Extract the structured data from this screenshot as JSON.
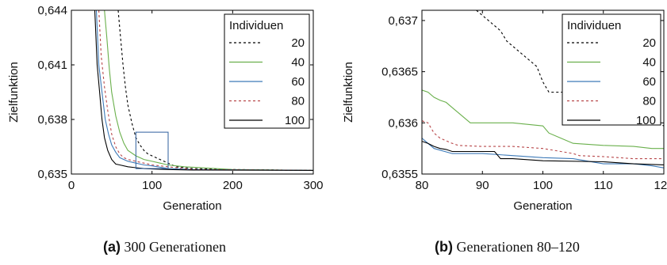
{
  "chart_data": [
    {
      "type": "line",
      "caption_label": "(a)",
      "caption_text": "300 Generationen",
      "xlabel": "Generation",
      "ylabel": "Zielfunktion",
      "xlim": [
        0,
        300
      ],
      "ylim": [
        0.635,
        0.644
      ],
      "xticks": [
        0,
        100,
        200,
        300
      ],
      "xtick_labels": [
        "0",
        "100",
        "200",
        "300"
      ],
      "yticks": [
        0.635,
        0.638,
        0.641,
        0.644
      ],
      "ytick_labels": [
        "0,635",
        "0,638",
        "0,641",
        "0,644"
      ],
      "grid": false,
      "legend_title": "Individuen",
      "legend_position": "top-right",
      "zoom_box": {
        "x": [
          80,
          120
        ],
        "y": [
          0.6353,
          0.6373
        ]
      },
      "series": [
        {
          "name": "20",
          "color": "#000000",
          "dash": "3,3",
          "x": [
            58,
            61,
            64,
            67,
            70,
            75,
            80,
            85,
            90,
            95,
            100,
            110,
            120,
            130,
            150,
            200,
            300
          ],
          "y": [
            0.644,
            0.6425,
            0.641,
            0.6398,
            0.6388,
            0.6378,
            0.637,
            0.6366,
            0.6363,
            0.6361,
            0.636,
            0.6358,
            0.6356,
            0.6354,
            0.6353,
            0.63525,
            0.6352
          ]
        },
        {
          "name": "40",
          "color": "#6ab04c",
          "dash": "",
          "x": [
            41,
            44,
            47,
            50,
            55,
            60,
            65,
            70,
            80,
            90,
            100,
            110,
            120,
            140,
            200,
            300
          ],
          "y": [
            0.644,
            0.6425,
            0.6408,
            0.6395,
            0.6382,
            0.6373,
            0.6367,
            0.6363,
            0.636,
            0.6358,
            0.6357,
            0.6356,
            0.6355,
            0.6354,
            0.63525,
            0.6352
          ]
        },
        {
          "name": "60",
          "color": "#3d7ab8",
          "dash": "",
          "x": [
            31,
            34,
            38,
            42,
            46,
            50,
            55,
            60,
            65,
            70,
            80,
            90,
            100,
            120,
            150,
            300
          ],
          "y": [
            0.644,
            0.641,
            0.6395,
            0.638,
            0.6372,
            0.6366,
            0.6362,
            0.6359,
            0.6358,
            0.6357,
            0.6356,
            0.6355,
            0.63545,
            0.6353,
            0.63525,
            0.6352
          ]
        },
        {
          "name": "80",
          "color": "#b8474a",
          "dash": "3,3",
          "x": [
            34,
            37,
            41,
            45,
            50,
            55,
            60,
            65,
            70,
            80,
            90,
            100,
            120,
            150,
            300
          ],
          "y": [
            0.644,
            0.6415,
            0.6398,
            0.6385,
            0.6372,
            0.6365,
            0.6361,
            0.6359,
            0.6358,
            0.6357,
            0.6356,
            0.6355,
            0.6354,
            0.63525,
            0.6352
          ]
        },
        {
          "name": "100",
          "color": "#000000",
          "dash": "",
          "x": [
            29,
            32,
            35,
            38,
            41,
            45,
            50,
            55,
            60,
            70,
            80,
            90,
            100,
            120,
            150,
            300
          ],
          "y": [
            0.644,
            0.641,
            0.6395,
            0.638,
            0.637,
            0.6363,
            0.6358,
            0.63555,
            0.6355,
            0.6354,
            0.63535,
            0.6353,
            0.63528,
            0.63525,
            0.63522,
            0.6352
          ]
        }
      ]
    },
    {
      "type": "line",
      "caption_label": "(b)",
      "caption_text": "Generationen 80–120",
      "xlabel": "Generation",
      "ylabel": "Zielfunktion",
      "xlim": [
        80,
        120
      ],
      "ylim": [
        0.6355,
        0.6371
      ],
      "xticks": [
        80,
        90,
        100,
        110,
        120
      ],
      "xtick_labels": [
        "80",
        "90",
        "100",
        "110",
        "120"
      ],
      "yticks": [
        0.6355,
        0.636,
        0.6365,
        0.637
      ],
      "ytick_labels": [
        "0,6355",
        "0,636",
        "0,6365",
        "0,637"
      ],
      "grid": false,
      "legend_title": "Individuen",
      "legend_position": "top-right",
      "series": [
        {
          "name": "20",
          "color": "#000000",
          "dash": "3,3",
          "x": [
            89,
            90,
            91,
            92,
            93,
            94,
            95,
            96,
            97,
            98,
            99,
            100,
            101,
            102,
            105,
            108,
            109,
            110,
            111,
            112,
            113,
            114,
            115,
            116,
            117,
            118,
            119,
            120
          ],
          "y": [
            0.6371,
            0.63705,
            0.637,
            0.63695,
            0.6369,
            0.6368,
            0.63675,
            0.6367,
            0.63665,
            0.6366,
            0.63655,
            0.6364,
            0.6363,
            0.6363,
            0.6363,
            0.6363,
            0.63628,
            0.63625,
            0.6362,
            0.6362,
            0.63618,
            0.6361,
            0.6361,
            0.63608,
            0.636,
            0.636,
            0.636,
            0.63597
          ]
        },
        {
          "name": "40",
          "color": "#6ab04c",
          "dash": "",
          "x": [
            80,
            81,
            82,
            83,
            84,
            85,
            86,
            88,
            90,
            95,
            100,
            101,
            103,
            105,
            110,
            115,
            118,
            120
          ],
          "y": [
            0.63632,
            0.6363,
            0.63625,
            0.63622,
            0.6362,
            0.63615,
            0.6361,
            0.636,
            0.636,
            0.636,
            0.63597,
            0.6359,
            0.63585,
            0.6358,
            0.63578,
            0.63577,
            0.63575,
            0.63575
          ]
        },
        {
          "name": "60",
          "color": "#3d7ab8",
          "dash": "",
          "x": [
            80,
            81,
            82,
            85,
            90,
            95,
            100,
            105,
            110,
            115,
            118,
            120
          ],
          "y": [
            0.63585,
            0.6358,
            0.63575,
            0.6357,
            0.6357,
            0.63568,
            0.63566,
            0.63565,
            0.6356,
            0.6356,
            0.63558,
            0.63556
          ]
        },
        {
          "name": "80",
          "color": "#b8474a",
          "dash": "3,3",
          "x": [
            80,
            81,
            82,
            83,
            85,
            86,
            90,
            95,
            100,
            105,
            106,
            110,
            115,
            120
          ],
          "y": [
            0.63602,
            0.636,
            0.6359,
            0.63585,
            0.6358,
            0.63578,
            0.63577,
            0.63577,
            0.63575,
            0.6357,
            0.63568,
            0.63567,
            0.63565,
            0.63565
          ]
        },
        {
          "name": "100",
          "color": "#000000",
          "dash": "",
          "x": [
            80,
            81,
            82,
            83,
            84,
            85,
            88,
            90,
            92,
            93,
            95,
            100,
            110,
            115,
            120
          ],
          "y": [
            0.63582,
            0.6358,
            0.63577,
            0.63575,
            0.63574,
            0.63572,
            0.63572,
            0.63572,
            0.63572,
            0.63565,
            0.63565,
            0.63563,
            0.63562,
            0.6356,
            0.63559
          ]
        }
      ]
    }
  ]
}
